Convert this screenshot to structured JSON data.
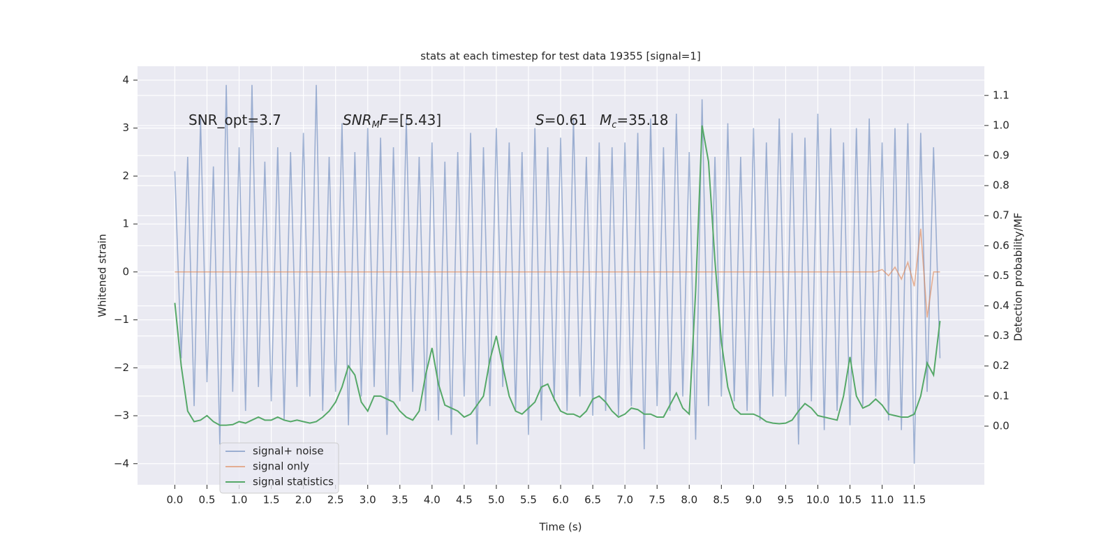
{
  "chart_data": {
    "type": "line",
    "title": "stats at each timestep for test data 19355 [signal=1]",
    "xlabel": "Time (s)",
    "ylabel": "Whitened strain",
    "y2label": "Detection probability/MF",
    "background": "#eaeaf2",
    "grid": true,
    "legend": "lower left",
    "xlim": [
      -0.58,
      12.59
    ],
    "ylim": [
      -4.44,
      4.29
    ],
    "y2lim": [
      -0.195,
      1.197
    ],
    "xticks": [
      {
        "value": 0,
        "label": "0.0"
      },
      0.5,
      {
        "value": 1,
        "label": "1.0"
      },
      1.5,
      {
        "value": 2,
        "label": "2.0"
      },
      2.5,
      {
        "value": 3,
        "label": "3.0"
      },
      3.5,
      {
        "value": 4,
        "label": "4.0"
      },
      4.5,
      {
        "value": 5,
        "label": "5.0"
      },
      5.5,
      {
        "value": 6,
        "label": "6.0"
      },
      6.5,
      {
        "value": 7,
        "label": "7.0"
      },
      7.5,
      {
        "value": 8,
        "label": "8.0"
      },
      8.5,
      {
        "value": 9,
        "label": "9.0"
      },
      9.5,
      {
        "value": 10,
        "label": "10.0"
      },
      10.5,
      {
        "value": 11,
        "label": "11.0"
      },
      11.5
    ],
    "yticks": [
      {
        "value": -4,
        "label": "−4"
      },
      {
        "value": -3,
        "label": "−3"
      },
      {
        "value": -2,
        "label": "−2"
      },
      {
        "value": -1,
        "label": "−1"
      },
      0,
      1,
      2,
      3,
      4
    ],
    "y2ticks": [
      {
        "value": 0,
        "label": "0.0"
      },
      0.1,
      0.2,
      0.3,
      0.4,
      0.5,
      0.6,
      0.7,
      0.8,
      0.9,
      {
        "value": 1,
        "label": "1.0"
      },
      1.1
    ],
    "annotations": [
      {
        "parts": [
          {
            "text": "SNR_opt=3.7"
          }
        ]
      },
      {
        "parts": [
          {
            "text": "SNR",
            "style": "italic"
          },
          {
            "text": "M",
            "style": "italic-sub"
          },
          {
            "text": "F",
            "style": "italic"
          },
          {
            "text": "=[5.43]"
          }
        ]
      },
      {
        "parts": [
          {
            "text": "S",
            "style": "italic"
          },
          {
            "text": "=0.61"
          }
        ]
      },
      {
        "parts": [
          {
            "text": "M",
            "style": "italic"
          },
          {
            "text": "c",
            "style": "italic-sub"
          },
          {
            "text": "=35.18"
          }
        ]
      }
    ],
    "x": [
      0,
      0.1,
      0.2,
      0.3,
      0.4,
      0.5,
      0.6,
      0.7,
      0.8,
      0.9,
      1,
      1.1,
      1.2,
      1.3,
      1.4,
      1.5,
      1.6,
      1.7,
      1.8,
      1.9,
      2,
      2.1,
      2.2,
      2.3,
      2.4,
      2.5,
      2.6,
      2.7,
      2.8,
      2.9,
      3,
      3.1,
      3.2,
      3.3,
      3.4,
      3.5,
      3.6,
      3.7,
      3.8,
      3.9,
      4,
      4.1,
      4.2,
      4.3,
      4.4,
      4.5,
      4.6,
      4.7,
      4.8,
      4.9,
      5,
      5.1,
      5.2,
      5.3,
      5.4,
      5.5,
      5.6,
      5.7,
      5.8,
      5.9,
      6,
      6.1,
      6.2,
      6.3,
      6.4,
      6.5,
      6.6,
      6.7,
      6.8,
      6.9,
      7,
      7.1,
      7.2,
      7.3,
      7.4,
      7.5,
      7.6,
      7.7,
      7.8,
      7.9,
      8,
      8.1,
      8.2,
      8.3,
      8.4,
      8.5,
      8.6,
      8.7,
      8.8,
      8.9,
      9,
      9.1,
      9.2,
      9.3,
      9.4,
      9.5,
      9.6,
      9.7,
      9.8,
      9.9,
      10,
      10.1,
      10.2,
      10.3,
      10.4,
      10.5,
      10.6,
      10.7,
      10.8,
      10.9,
      11,
      11.1,
      11.2,
      11.3,
      11.4,
      11.5,
      11.6,
      11.7,
      11.8,
      11.9
    ],
    "series": [
      {
        "name": "signal+ noise",
        "color": "#4c72b0",
        "opacity": 0.5,
        "axis": "y",
        "values": [
          2.1,
          -1.8,
          2.4,
          -2.8,
          3.2,
          -2.3,
          2.2,
          -3.6,
          3.9,
          -2.5,
          2.6,
          -2.9,
          3.9,
          -2.4,
          2.3,
          -2.7,
          2.6,
          -3.1,
          2.5,
          -2.4,
          2.9,
          -2.6,
          3.9,
          -2.9,
          2.4,
          -2.5,
          3.1,
          -3.2,
          2.5,
          -2.6,
          3.0,
          -2.4,
          2.8,
          -3.4,
          2.6,
          -2.7,
          3.2,
          -2.5,
          2.4,
          -2.9,
          2.7,
          -3.1,
          2.3,
          -3.4,
          2.5,
          -2.6,
          2.9,
          -3.6,
          2.6,
          -2.8,
          3.0,
          -2.4,
          2.7,
          -2.9,
          2.5,
          -3.4,
          3.0,
          -3.1,
          2.6,
          -2.7,
          2.8,
          -2.9,
          3.2,
          -2.6,
          2.4,
          -3.0,
          2.7,
          -2.9,
          2.6,
          -3.0,
          2.7,
          -2.8,
          2.9,
          -3.7,
          3.2,
          -2.8,
          2.6,
          -2.9,
          3.3,
          -2.6,
          2.5,
          -3.5,
          3.6,
          -2.8,
          2.4,
          -2.6,
          3.1,
          -2.7,
          2.4,
          -2.9,
          3.0,
          -3.1,
          2.7,
          -2.6,
          3.2,
          -2.6,
          2.9,
          -3.6,
          2.8,
          -2.7,
          3.3,
          -3.3,
          3.0,
          -2.9,
          2.7,
          -3.2,
          3.0,
          -2.8,
          3.2,
          -2.6,
          2.7,
          -3.1,
          3.0,
          -3.3,
          3.1,
          -4.0,
          2.9,
          -2.5,
          2.6,
          -1.8
        ]
      },
      {
        "name": "signal only",
        "color": "#dd8452",
        "opacity": 0.6,
        "axis": "y",
        "values": [
          0,
          0,
          0,
          0,
          0,
          0,
          0,
          0,
          0,
          0,
          0,
          0,
          0,
          0,
          0,
          0,
          0,
          0,
          0,
          0,
          0,
          0,
          0,
          0,
          0,
          0,
          0,
          0,
          0,
          0,
          0,
          0,
          0,
          0,
          0,
          0,
          0,
          0,
          0,
          0,
          0,
          0,
          0,
          0,
          0,
          0,
          0,
          0,
          0,
          0,
          0,
          0,
          0,
          0,
          0,
          0,
          0,
          0,
          0,
          0,
          0,
          0,
          0,
          0,
          0,
          0,
          0,
          0,
          0,
          0,
          0,
          0,
          0,
          0,
          0,
          0,
          0,
          0,
          0,
          0,
          0,
          0,
          0,
          0,
          0,
          0,
          0,
          0,
          0,
          0,
          0,
          0,
          0,
          0,
          0,
          0,
          0,
          0,
          0,
          0,
          0,
          0,
          0,
          0,
          0,
          0,
          0,
          0,
          0,
          0,
          0.05,
          -0.08,
          0.1,
          -0.15,
          0.2,
          -0.3,
          0.9,
          -0.95,
          0,
          0
        ]
      },
      {
        "name": "signal statistics",
        "color": "#55a868",
        "opacity": 1,
        "axis": "y2",
        "values": [
          0.41,
          0.2,
          0.05,
          0.015,
          0.02,
          0.035,
          0.015,
          0.003,
          0.003,
          0.005,
          0.015,
          0.01,
          0.02,
          0.03,
          0.02,
          0.02,
          0.03,
          0.02,
          0.015,
          0.02,
          0.015,
          0.01,
          0.015,
          0.03,
          0.05,
          0.08,
          0.13,
          0.2,
          0.17,
          0.08,
          0.05,
          0.1,
          0.1,
          0.09,
          0.08,
          0.05,
          0.03,
          0.02,
          0.05,
          0.17,
          0.26,
          0.14,
          0.07,
          0.06,
          0.05,
          0.03,
          0.04,
          0.07,
          0.1,
          0.22,
          0.3,
          0.2,
          0.1,
          0.05,
          0.04,
          0.06,
          0.08,
          0.13,
          0.14,
          0.09,
          0.05,
          0.04,
          0.04,
          0.03,
          0.05,
          0.09,
          0.1,
          0.08,
          0.05,
          0.03,
          0.04,
          0.06,
          0.055,
          0.04,
          0.04,
          0.03,
          0.03,
          0.07,
          0.11,
          0.06,
          0.04,
          0.45,
          1.0,
          0.88,
          0.55,
          0.28,
          0.13,
          0.06,
          0.04,
          0.04,
          0.04,
          0.03,
          0.015,
          0.01,
          0.008,
          0.01,
          0.02,
          0.05,
          0.075,
          0.06,
          0.035,
          0.03,
          0.025,
          0.02,
          0.1,
          0.23,
          0.1,
          0.06,
          0.07,
          0.09,
          0.07,
          0.04,
          0.035,
          0.03,
          0.03,
          0.04,
          0.1,
          0.21,
          0.17,
          0.35
        ]
      }
    ]
  }
}
